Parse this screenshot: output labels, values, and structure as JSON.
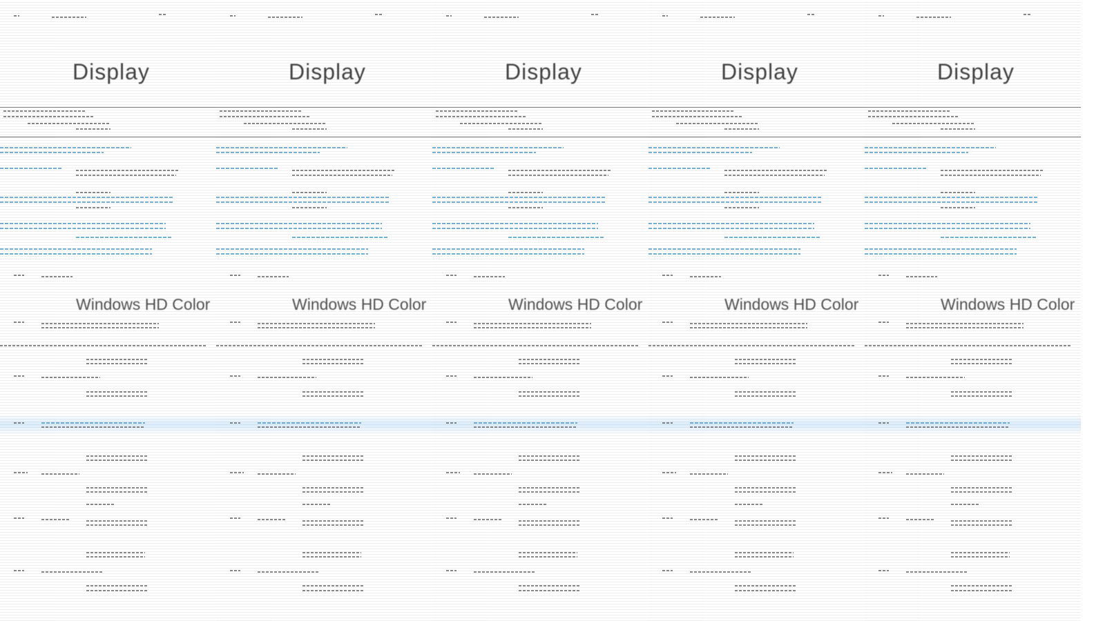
{
  "page": {
    "title": "Display",
    "section_title": "Windows HD Color",
    "repeat_count": 5
  },
  "colors": {
    "text": "#222222",
    "link": "#3a8fc0",
    "highlight": "#96c8f0"
  }
}
